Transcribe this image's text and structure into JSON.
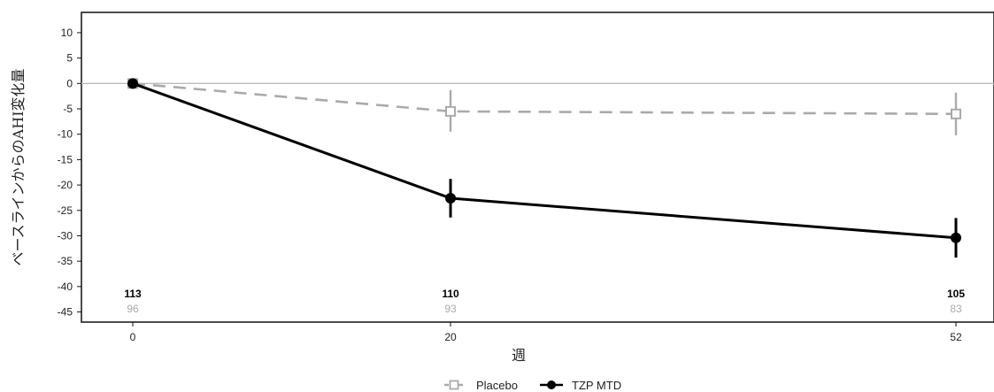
{
  "chart_data": {
    "type": "line",
    "xlabel": "週",
    "ylabel": "ベースラインからのAHI変化量",
    "x": [
      0,
      20,
      52
    ],
    "x_tick_labels": [
      "0",
      "20",
      "52"
    ],
    "ylim": [
      -47,
      14
    ],
    "y_ticks": [
      10,
      5,
      0,
      -5,
      -10,
      -15,
      -20,
      -25,
      -30,
      -35,
      -40,
      -45
    ],
    "y_tick_labels": [
      "10",
      "5",
      "0",
      "-5",
      "-10",
      "-15",
      "-20",
      "-25",
      "-30",
      "-35",
      "-40",
      "-45"
    ],
    "reference_line_y": 0,
    "grid": false,
    "legend_position": "bottom-center",
    "series": [
      {
        "name": "Placebo",
        "color": "#aaaaaa",
        "line_style": "dashed",
        "marker": "open-square",
        "values": [
          0,
          -5.5,
          -6.0
        ],
        "error_low": [
          0,
          -9.5,
          -10.2
        ],
        "error_high": [
          0,
          -1.3,
          -1.8
        ],
        "n_at_risk": [
          "96",
          "93",
          "83"
        ]
      },
      {
        "name": "TZP MTD",
        "color": "#000000",
        "line_style": "solid",
        "marker": "filled-circle",
        "values": [
          0,
          -22.6,
          -30.4
        ],
        "error_low": [
          0,
          -26.4,
          -34.3
        ],
        "error_high": [
          0,
          -18.8,
          -26.5
        ],
        "n_at_risk": [
          "113",
          "110",
          "105"
        ]
      }
    ]
  }
}
